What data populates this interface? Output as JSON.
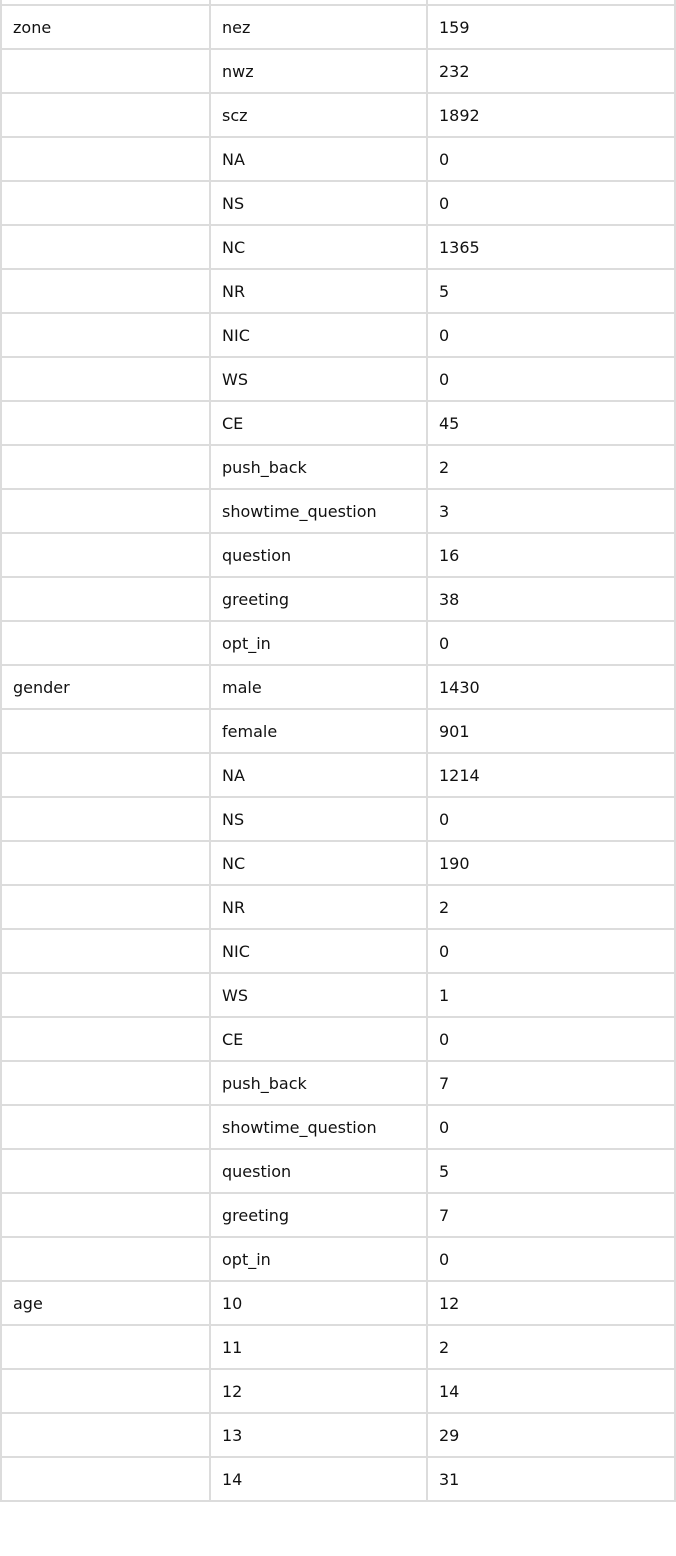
{
  "table": {
    "rows": [
      [
        "",
        "",
        ""
      ],
      [
        "zone",
        "nez",
        "159"
      ],
      [
        "",
        "nwz",
        "232"
      ],
      [
        "",
        "scz",
        "1892"
      ],
      [
        "",
        "NA",
        "0"
      ],
      [
        "",
        "NS",
        "0"
      ],
      [
        "",
        "NC",
        "1365"
      ],
      [
        "",
        "NR",
        "5"
      ],
      [
        "",
        "NIC",
        "0"
      ],
      [
        "",
        "WS",
        "0"
      ],
      [
        "",
        "CE",
        "45"
      ],
      [
        "",
        "push_back",
        "2"
      ],
      [
        "",
        "showtime_question",
        "3"
      ],
      [
        "",
        "question",
        "16"
      ],
      [
        "",
        "greeting",
        "38"
      ],
      [
        "",
        "opt_in",
        "0"
      ],
      [
        "gender",
        "male",
        "1430"
      ],
      [
        "",
        "female",
        "901"
      ],
      [
        "",
        "NA",
        "1214"
      ],
      [
        "",
        "NS",
        "0"
      ],
      [
        "",
        "NC",
        "190"
      ],
      [
        "",
        "NR",
        "2"
      ],
      [
        "",
        "NIC",
        "0"
      ],
      [
        "",
        "WS",
        "1"
      ],
      [
        "",
        "CE",
        "0"
      ],
      [
        "",
        "push_back",
        "7"
      ],
      [
        "",
        "showtime_question",
        "0"
      ],
      [
        "",
        "question",
        "5"
      ],
      [
        "",
        "greeting",
        "7"
      ],
      [
        "",
        "opt_in",
        "0"
      ],
      [
        "age",
        "10",
        "12"
      ],
      [
        "",
        "11",
        "2"
      ],
      [
        "",
        "12",
        "14"
      ],
      [
        "",
        "13",
        "29"
      ],
      [
        "",
        "14",
        "31"
      ]
    ]
  }
}
